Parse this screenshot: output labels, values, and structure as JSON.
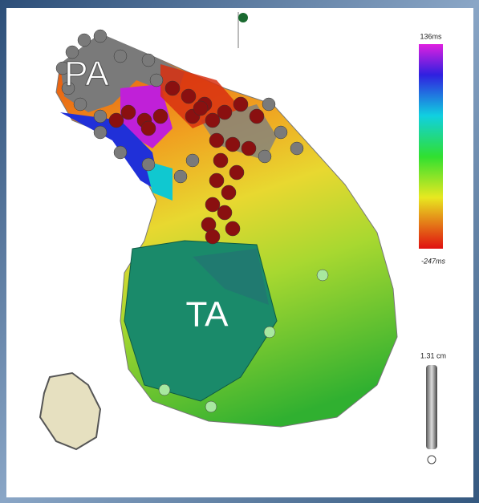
{
  "labels": {
    "pa": "PA",
    "ta": "TA"
  },
  "colorbar": {
    "max": "136ms",
    "min": "-247ms"
  },
  "scale_bar": {
    "label": "1.31 cm"
  }
}
